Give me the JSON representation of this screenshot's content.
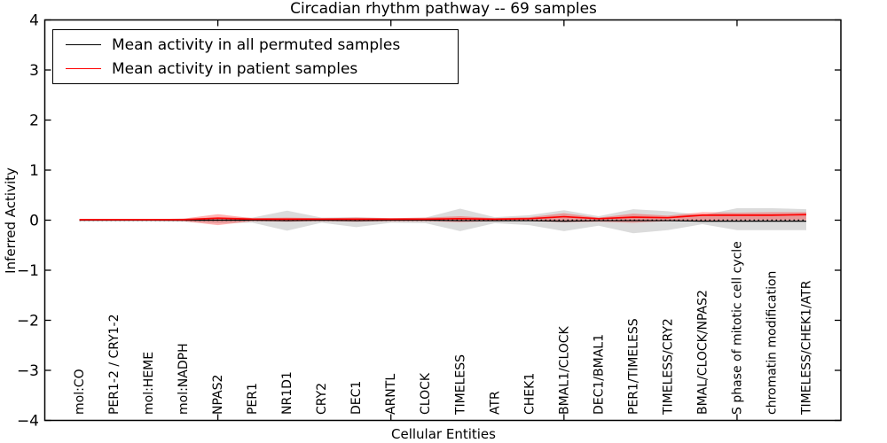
{
  "figure": {
    "background": "#ffffff"
  },
  "chart_data": {
    "type": "line",
    "title": "Circadian rhythm pathway -- 69 samples",
    "xlabel": "Cellular Entities",
    "ylabel": "Inferred Activity",
    "ylim": [
      -4,
      4
    ],
    "xlim": [
      0,
      23
    ],
    "grid": false,
    "legend_position": "upper left",
    "ytick_values": [
      4,
      3,
      2,
      1,
      0,
      -1,
      -2,
      -3,
      -4
    ],
    "ytick_labels": [
      "4",
      "3",
      "2",
      "1",
      "0",
      "−1",
      "−2",
      "−3",
      "−4"
    ],
    "xtick_positions": [
      5,
      10,
      15,
      20
    ],
    "categories": [
      "mol:CO",
      "PER1-2 / CRY1-2",
      "mol:HEME",
      "mol:NADPH",
      "NPAS2",
      "PER1",
      "NR1D1",
      "CRY2",
      "DEC1",
      "ARNTL",
      "CLOCK",
      "TIMELESS",
      "ATR",
      "CHEK1",
      "BMAL1/CLOCK",
      "DEC1/BMAL1",
      "PER1/TIMELESS",
      "TIMELESS/CRY2",
      "BMAL/CLOCK/NPAS2",
      "S phase of mitotic cell cycle",
      "chromatin modification",
      "TIMELESS/CHEK1/ATR"
    ],
    "x": [
      1,
      2,
      3,
      4,
      5,
      6,
      7,
      8,
      9,
      10,
      11,
      12,
      13,
      14,
      15,
      16,
      17,
      18,
      19,
      20,
      21,
      22
    ],
    "zero_line": {
      "y": 0,
      "style": "dotted",
      "color": "#000000"
    },
    "series": [
      {
        "name": "Mean activity in all permuted samples",
        "color": "#000000",
        "band_color": "#7f7f7f",
        "band_opacity": 0.28,
        "values": [
          0,
          0,
          0,
          0,
          0,
          0,
          -0.01,
          0,
          -0.01,
          0,
          0,
          -0.01,
          -0.01,
          -0.01,
          -0.02,
          -0.01,
          -0.01,
          -0.01,
          -0.02,
          -0.02,
          -0.02,
          -0.02
        ],
        "band_upper": [
          0.02,
          0.02,
          0.02,
          0.03,
          0.05,
          0.05,
          0.19,
          0.05,
          0.06,
          0.04,
          0.05,
          0.23,
          0.06,
          0.1,
          0.2,
          0.08,
          0.22,
          0.18,
          0.1,
          0.24,
          0.24,
          0.22
        ],
        "band_lower": [
          -0.02,
          -0.02,
          -0.02,
          -0.03,
          -0.06,
          -0.05,
          -0.21,
          -0.05,
          -0.14,
          -0.05,
          -0.06,
          -0.22,
          -0.06,
          -0.1,
          -0.22,
          -0.11,
          -0.26,
          -0.2,
          -0.08,
          -0.2,
          -0.2,
          -0.2
        ]
      },
      {
        "name": "Mean activity in patient samples",
        "color": "#ff0000",
        "band_color": "#ff0000",
        "band_opacity": 0.3,
        "values": [
          0.01,
          0.01,
          0.01,
          0.01,
          0.04,
          0.02,
          0.02,
          0.02,
          0.02,
          0.02,
          0.02,
          0.03,
          0.02,
          0.03,
          0.07,
          0.03,
          0.06,
          0.05,
          0.1,
          0.1,
          0.1,
          0.11
        ],
        "band_upper": [
          0.02,
          0.02,
          0.02,
          0.03,
          0.12,
          0.04,
          0.05,
          0.04,
          0.05,
          0.04,
          0.05,
          0.08,
          0.04,
          0.06,
          0.14,
          0.05,
          0.13,
          0.09,
          0.16,
          0.15,
          0.16,
          0.16
        ],
        "band_lower": [
          -0.01,
          -0.01,
          -0.01,
          -0.02,
          -0.1,
          -0.02,
          -0.03,
          -0.02,
          -0.03,
          -0.02,
          -0.02,
          -0.04,
          -0.02,
          -0.02,
          -0.04,
          -0.03,
          -0.05,
          -0.02,
          -0.01,
          0.0,
          0.0,
          0.0
        ]
      }
    ]
  }
}
